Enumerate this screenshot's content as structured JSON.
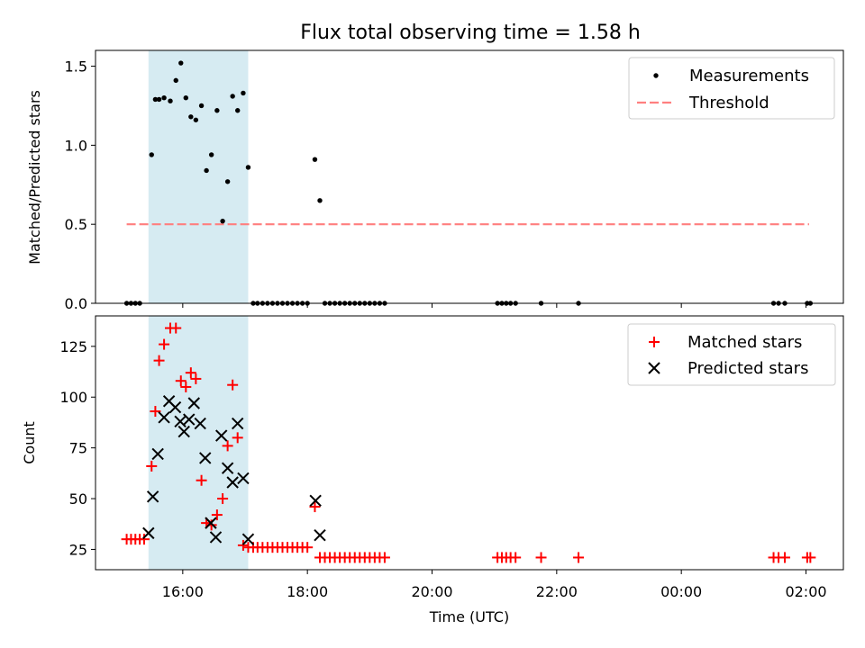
{
  "chart_data": [
    {
      "type": "scatter",
      "title": "Flux total observing time = 1.58 h",
      "xlabel": "",
      "ylabel": "Matched/Predicted stars",
      "xlim": [
        14.6,
        26.6
      ],
      "ylim": [
        0,
        1.6
      ],
      "yticks": [
        0.0,
        0.5,
        1.0,
        1.5
      ],
      "ytick_labels": [
        "0.0",
        "0.5",
        "1.0",
        "1.5"
      ],
      "xticks": [
        16,
        18,
        20,
        22,
        24,
        26
      ],
      "shaded_region": [
        15.45,
        17.05
      ],
      "legend": {
        "position": "top-right",
        "measurements_label": "Measurements",
        "threshold_label": "Threshold"
      },
      "threshold": {
        "value": 0.5,
        "x_range": [
          15.1,
          26.05
        ]
      },
      "series": [
        {
          "name": "Measurements",
          "x": [
            15.1,
            15.17,
            15.24,
            15.31,
            15.5,
            15.56,
            15.62,
            15.7,
            15.8,
            15.89,
            15.97,
            16.05,
            16.13,
            16.21,
            16.3,
            16.38,
            16.46,
            16.55,
            16.64,
            16.72,
            16.8,
            16.88,
            16.97,
            17.05,
            17.13,
            17.2,
            17.28,
            17.36,
            17.44,
            17.52,
            17.6,
            17.68,
            17.76,
            17.84,
            17.92,
            18.0,
            18.12,
            18.2,
            18.28,
            18.36,
            18.44,
            18.52,
            18.6,
            18.68,
            18.76,
            18.84,
            18.92,
            19.0,
            19.08,
            19.16,
            19.24,
            21.05,
            21.12,
            21.19,
            21.26,
            21.34,
            21.75,
            22.35,
            25.48,
            25.56,
            25.66,
            26.02,
            26.07
          ],
          "y": [
            0.0,
            0.0,
            0.0,
            0.0,
            0.94,
            1.29,
            1.29,
            1.3,
            1.28,
            1.41,
            1.52,
            1.3,
            1.18,
            1.16,
            1.25,
            0.84,
            0.94,
            1.22,
            0.52,
            0.77,
            1.31,
            1.22,
            1.33,
            0.86,
            0.0,
            0.0,
            0.0,
            0.0,
            0.0,
            0.0,
            0.0,
            0.0,
            0.0,
            0.0,
            0.0,
            0.0,
            0.91,
            0.65,
            0.0,
            0.0,
            0.0,
            0.0,
            0.0,
            0.0,
            0.0,
            0.0,
            0.0,
            0.0,
            0.0,
            0.0,
            0.0,
            0.0,
            0.0,
            0.0,
            0.0,
            0.0,
            0.0,
            0.0,
            0.0,
            0.0,
            0.0,
            0.0,
            0.0
          ]
        }
      ]
    },
    {
      "type": "scatter",
      "title": "",
      "xlabel": "Time (UTC)",
      "ylabel": "Count",
      "xlim": [
        14.6,
        26.6
      ],
      "ylim": [
        15,
        140
      ],
      "yticks": [
        25,
        50,
        75,
        100,
        125
      ],
      "ytick_labels": [
        "25",
        "50",
        "75",
        "100",
        "125"
      ],
      "xticks": [
        16,
        18,
        20,
        22,
        24,
        26
      ],
      "xtick_labels": [
        "16:00",
        "18:00",
        "20:00",
        "22:00",
        "00:00",
        "02:00"
      ],
      "shaded_region": [
        15.45,
        17.05
      ],
      "legend": {
        "position": "top-right",
        "matched_label": "Matched stars",
        "predicted_label": "Predicted stars"
      },
      "series": [
        {
          "name": "Matched stars",
          "x": [
            15.1,
            15.17,
            15.24,
            15.31,
            15.38,
            15.5,
            15.56,
            15.62,
            15.7,
            15.8,
            15.89,
            15.97,
            16.05,
            16.13,
            16.21,
            16.3,
            16.38,
            16.46,
            16.55,
            16.64,
            16.72,
            16.8,
            16.88,
            16.97,
            17.05,
            17.13,
            17.2,
            17.28,
            17.36,
            17.44,
            17.52,
            17.6,
            17.68,
            17.76,
            17.84,
            17.92,
            18.0,
            18.12,
            18.2,
            18.28,
            18.36,
            18.44,
            18.52,
            18.6,
            18.68,
            18.76,
            18.84,
            18.92,
            19.0,
            19.08,
            19.16,
            19.24,
            21.05,
            21.12,
            21.19,
            21.26,
            21.34,
            21.75,
            22.35,
            25.48,
            25.56,
            25.66,
            26.02,
            26.07
          ],
          "y": [
            30,
            30,
            30,
            30,
            30,
            66,
            93,
            118,
            126,
            134,
            134,
            108,
            105,
            112,
            109,
            59,
            38,
            37,
            42,
            50,
            76,
            106,
            80,
            27,
            26,
            26,
            26,
            26,
            26,
            26,
            26,
            26,
            26,
            26,
            26,
            26,
            26,
            46,
            21,
            21,
            21,
            21,
            21,
            21,
            21,
            21,
            21,
            21,
            21,
            21,
            21,
            21,
            21,
            21,
            21,
            21,
            21,
            21,
            21,
            21,
            21,
            21,
            21,
            21
          ]
        },
        {
          "name": "Predicted stars",
          "x": [
            15.45,
            15.52,
            15.6,
            15.7,
            15.78,
            15.88,
            15.96,
            16.02,
            16.1,
            16.18,
            16.28,
            16.36,
            16.45,
            16.53,
            16.62,
            16.72,
            16.8,
            16.88,
            16.97,
            17.05,
            18.13,
            18.2
          ],
          "y": [
            33,
            51,
            72,
            90,
            98,
            95,
            88,
            83,
            89,
            97,
            87,
            70,
            38,
            31,
            81,
            65,
            58,
            87,
            60,
            30,
            49,
            32
          ]
        }
      ]
    }
  ],
  "colors": {
    "shade": "#add8e6",
    "threshold": "#ff7f7f",
    "matched": "#ff0000",
    "predicted": "#000000",
    "measurement": "#000000"
  }
}
